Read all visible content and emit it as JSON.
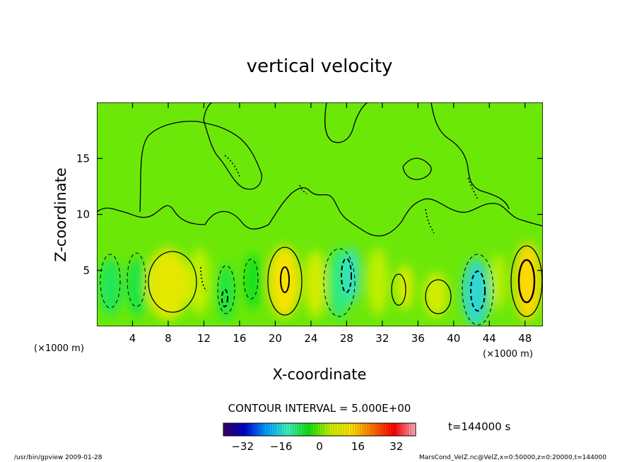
{
  "chart_data": {
    "type": "heatmap",
    "title": "vertical velocity",
    "xlabel": "X-coordinate",
    "ylabel": "Z-coordinate",
    "x_unit_label": "(×1000 m)",
    "x_unit_label_right": "(×1000 m)",
    "xlim": [
      0,
      50
    ],
    "ylim": [
      0,
      20
    ],
    "x_ticks": [
      4,
      8,
      12,
      16,
      20,
      24,
      28,
      32,
      36,
      40,
      44,
      48
    ],
    "y_ticks": [
      5,
      10,
      15
    ],
    "contour_interval_label": "CONTOUR INTERVAL = 5.000E+00",
    "time_label": "t=144000 s",
    "colorbar": {
      "range": [
        -40,
        40
      ],
      "ticks": [
        -32,
        -16,
        0,
        16,
        32
      ],
      "colors": [
        "#3a0060",
        "#0000c8",
        "#00a0ff",
        "#40f0c0",
        "#10e010",
        "#c8f000",
        "#ffe000",
        "#ff7000",
        "#ff0000",
        "#ffb0c0"
      ]
    },
    "background_value": 0,
    "cells": [
      {
        "x": 1.5,
        "z": 3.5,
        "rx": 1.3,
        "rz": 2.6,
        "value": -8
      },
      {
        "x": 4.5,
        "z": 3.5,
        "rx": 1.2,
        "rz": 2.6,
        "value": -7
      },
      {
        "x": 8.0,
        "z": 3.8,
        "rx": 2.5,
        "rz": 3.2,
        "value": 9
      },
      {
        "x": 11.5,
        "z": 4.0,
        "rx": 1.2,
        "rz": 3.0,
        "value": 4
      },
      {
        "x": 14.5,
        "z": 3.0,
        "rx": 1.0,
        "rz": 2.5,
        "value": -7
      },
      {
        "x": 17.5,
        "z": 4.0,
        "rx": 1.0,
        "rz": 2.5,
        "value": -5
      },
      {
        "x": 21.0,
        "z": 4.0,
        "rx": 1.8,
        "rz": 3.2,
        "value": 12
      },
      {
        "x": 24.5,
        "z": 3.8,
        "rx": 1.2,
        "rz": 3.0,
        "value": 6
      },
      {
        "x": 27.2,
        "z": 3.8,
        "rx": 1.2,
        "rz": 3.2,
        "value": -10
      },
      {
        "x": 28.6,
        "z": 4.6,
        "rx": 0.8,
        "rz": 2.5,
        "value": -15
      },
      {
        "x": 31.5,
        "z": 4.0,
        "rx": 1.2,
        "rz": 3.0,
        "value": 4
      },
      {
        "x": 34.5,
        "z": 3.5,
        "rx": 1.0,
        "rz": 2.0,
        "value": 7
      },
      {
        "x": 38.0,
        "z": 2.8,
        "rx": 1.4,
        "rz": 2.0,
        "value": 6
      },
      {
        "x": 42.5,
        "z": 3.0,
        "rx": 1.5,
        "rz": 3.0,
        "value": -16
      },
      {
        "x": 45.0,
        "z": 4.0,
        "rx": 0.8,
        "rz": 2.5,
        "value": 4
      },
      {
        "x": 48.3,
        "z": 4.0,
        "rx": 1.5,
        "rz": 3.5,
        "value": 14
      }
    ]
  },
  "footer": {
    "left": "/usr/bin/gpview  2009-01-28",
    "right": "MarsCond_VelZ.nc@VelZ,x=0:50000,z=0:20000,t=144000"
  }
}
